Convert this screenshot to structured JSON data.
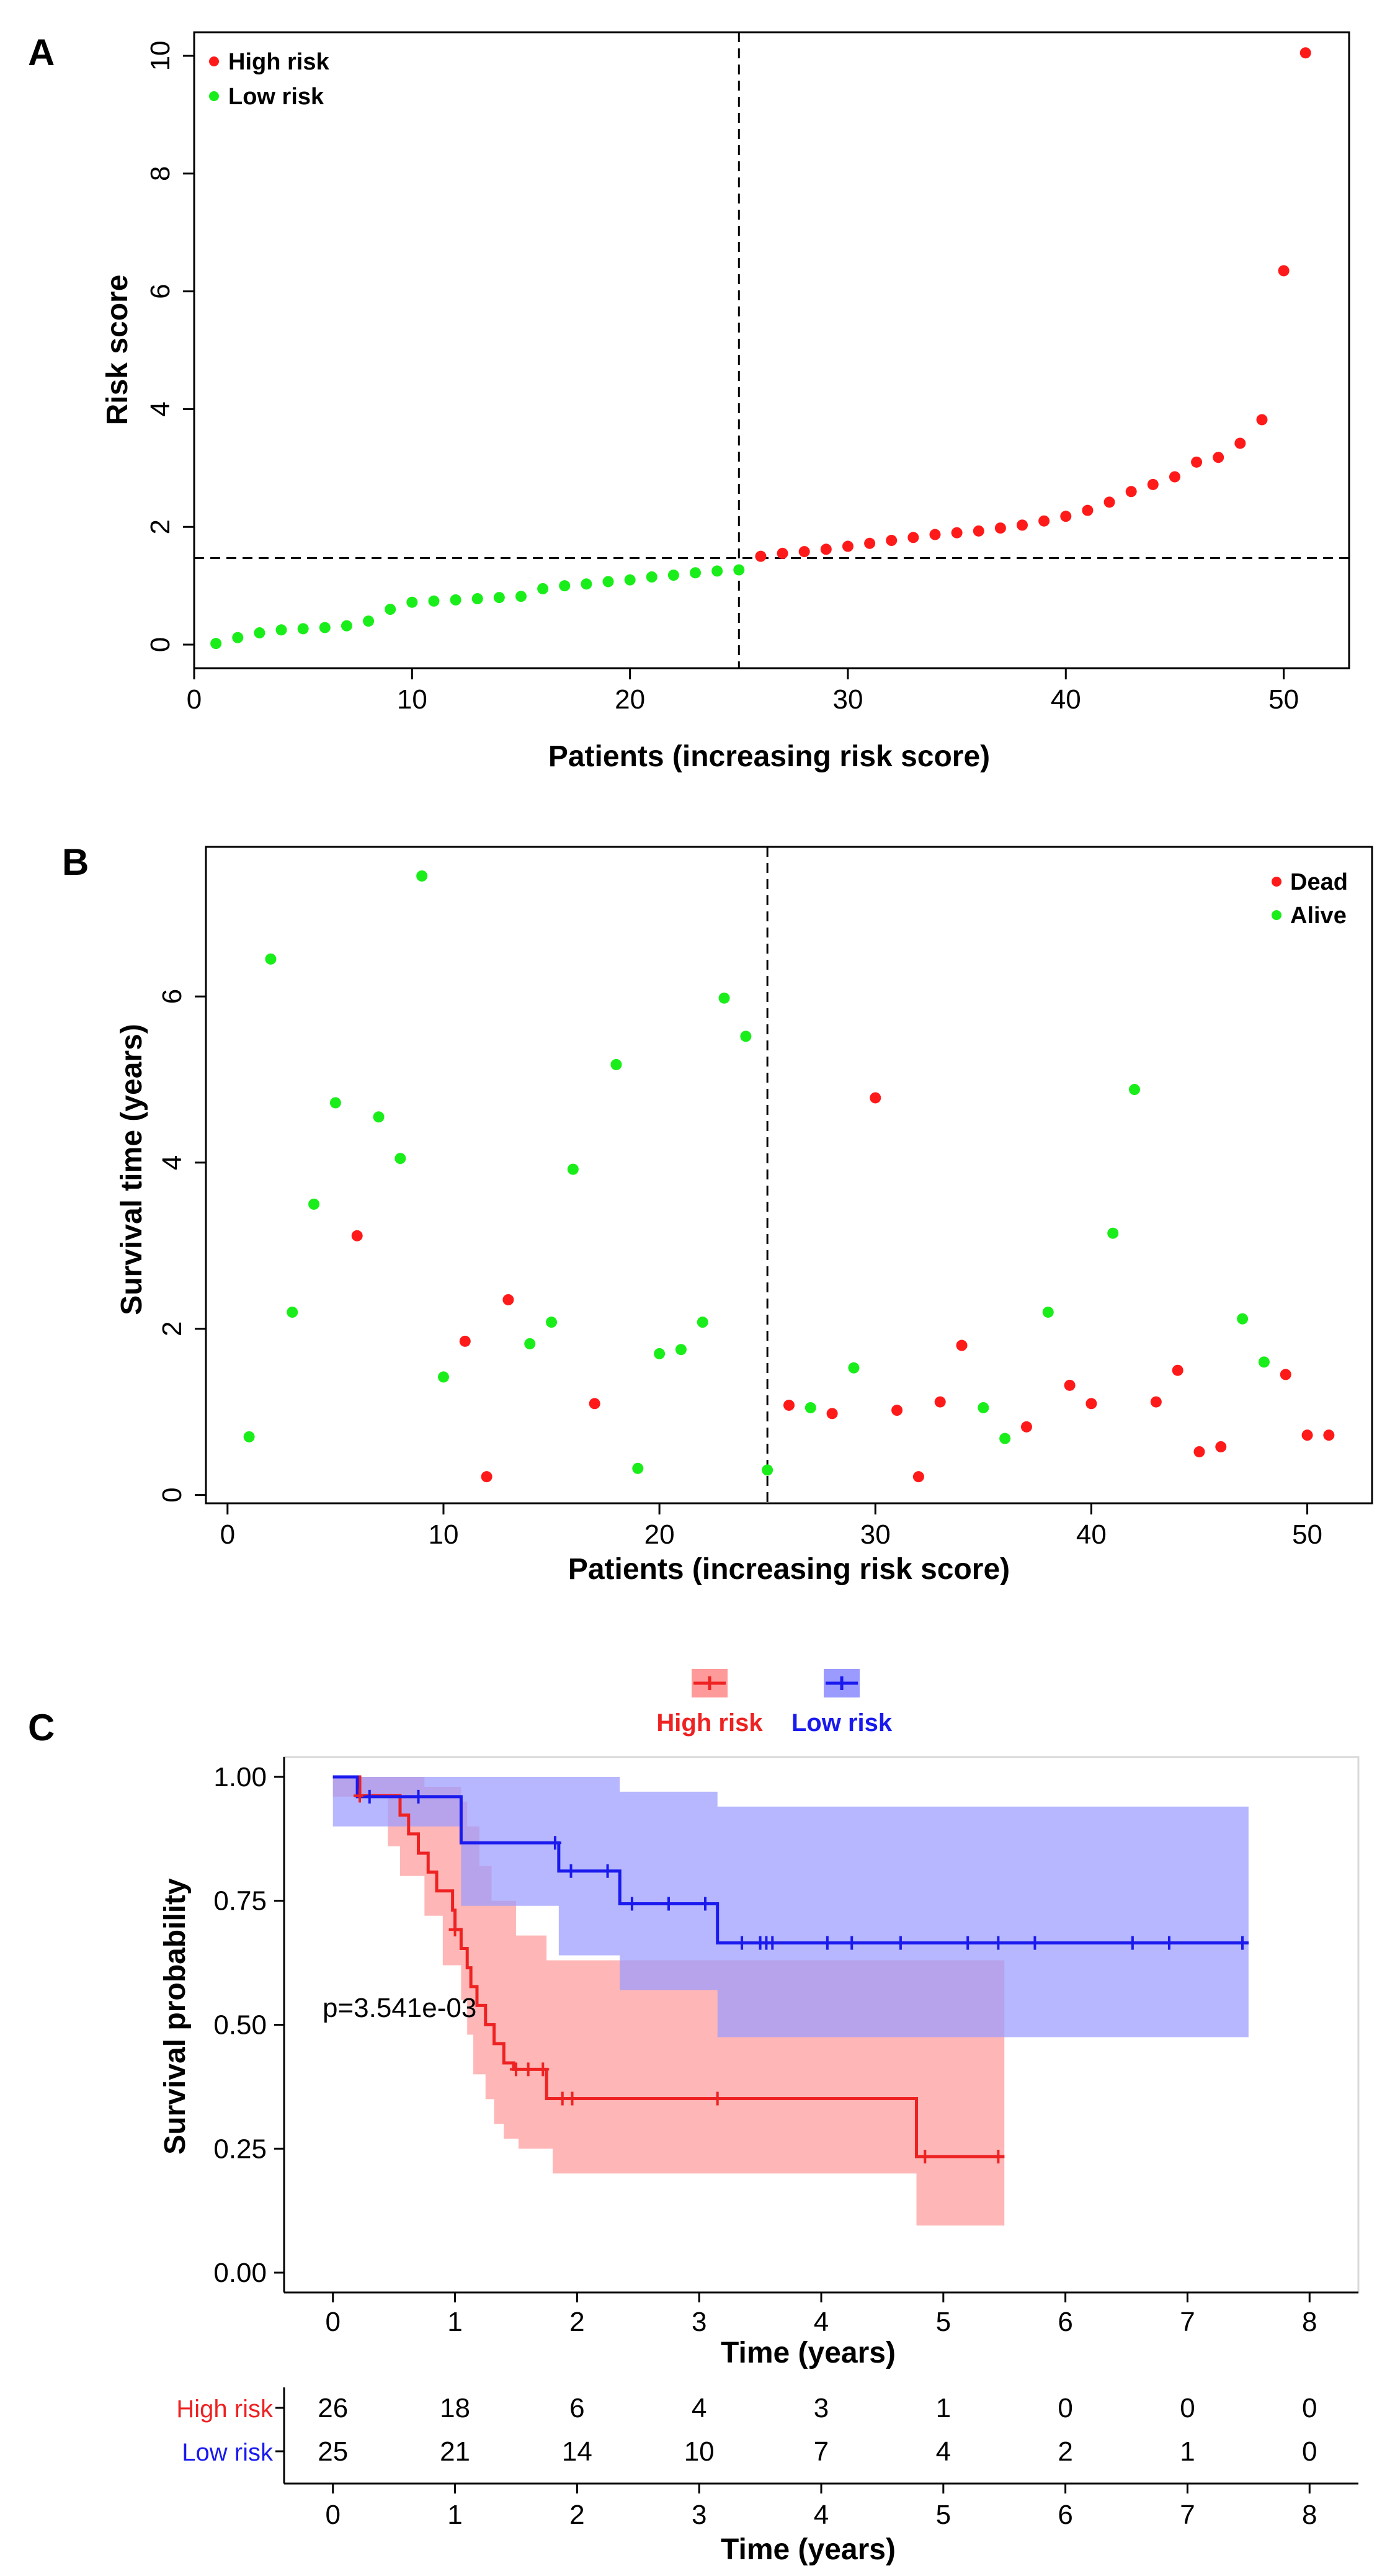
{
  "colors": {
    "high": "#ff1a1a",
    "low": "#1aee1a",
    "km_high": "#ee2222",
    "km_low": "#1a1aee",
    "km_high_band": "#ff9a9a",
    "km_low_band": "#9b9bff",
    "km_overlap": "#bb77cc"
  },
  "chart_data": [
    {
      "type": "scatter",
      "panel_label": "A",
      "xlabel": "Patients (increasing risk score)",
      "ylabel": "Risk score",
      "xlim": [
        0,
        53
      ],
      "ylim": [
        -0.4,
        10.4
      ],
      "xticks": [
        0,
        10,
        20,
        30,
        40,
        50
      ],
      "yticks": [
        0,
        2,
        4,
        6,
        8,
        10
      ],
      "cutoff_x": 25,
      "cutoff_y": 1.47,
      "legend": [
        "High risk",
        "Low risk"
      ],
      "series": [
        {
          "name": "Low risk",
          "x": [
            1,
            2,
            3,
            4,
            5,
            6,
            7,
            8,
            9,
            10,
            11,
            12,
            13,
            14,
            15,
            16,
            17,
            18,
            19,
            20,
            21,
            22,
            23,
            24,
            25
          ],
          "y": [
            0.02,
            0.12,
            0.2,
            0.25,
            0.27,
            0.29,
            0.32,
            0.4,
            0.6,
            0.72,
            0.74,
            0.76,
            0.78,
            0.8,
            0.82,
            0.95,
            1.0,
            1.03,
            1.07,
            1.1,
            1.15,
            1.18,
            1.22,
            1.25,
            1.27
          ]
        },
        {
          "name": "High risk",
          "x": [
            26,
            27,
            28,
            29,
            30,
            31,
            32,
            33,
            34,
            35,
            36,
            37,
            38,
            39,
            40,
            41,
            42,
            43,
            44,
            45,
            46,
            47,
            48,
            49,
            50,
            51
          ],
          "y": [
            1.5,
            1.55,
            1.58,
            1.62,
            1.67,
            1.72,
            1.77,
            1.82,
            1.87,
            1.9,
            1.93,
            1.98,
            2.03,
            2.1,
            2.18,
            2.28,
            2.42,
            2.6,
            2.72,
            2.85,
            3.1,
            3.18,
            3.42,
            3.82,
            6.35,
            10.05
          ]
        }
      ]
    },
    {
      "type": "scatter",
      "panel_label": "B",
      "xlabel": "Patients (increasing risk score)",
      "ylabel": "Survival time (years)",
      "xlim": [
        -1,
        53
      ],
      "ylim": [
        -0.1,
        7.8
      ],
      "xticks": [
        0,
        10,
        20,
        30,
        40,
        50
      ],
      "yticks": [
        0,
        2,
        4,
        6
      ],
      "cutoff_x": 25,
      "legend": [
        "Dead",
        "Alive"
      ],
      "series": [
        {
          "name": "Dead",
          "x": [
            6,
            11,
            12,
            13,
            17,
            26,
            28,
            30,
            31,
            32,
            33,
            34,
            37,
            39,
            40,
            43,
            44,
            45,
            46,
            49,
            50,
            51
          ],
          "y": [
            3.12,
            1.85,
            0.22,
            2.35,
            1.1,
            1.08,
            0.98,
            4.78,
            1.02,
            0.22,
            1.12,
            1.8,
            0.82,
            1.32,
            1.1,
            1.12,
            1.5,
            0.52,
            0.58,
            1.45,
            0.72,
            0.72
          ]
        },
        {
          "name": "Alive",
          "x": [
            1,
            2,
            3,
            4,
            5,
            7,
            8,
            9,
            10,
            14,
            15,
            16,
            18,
            19,
            20,
            21,
            22,
            23,
            24,
            25,
            27,
            29,
            35,
            36,
            38,
            41,
            42,
            47,
            48
          ],
          "y": [
            0.7,
            6.45,
            2.2,
            3.5,
            4.72,
            4.55,
            4.05,
            7.45,
            1.42,
            1.82,
            2.08,
            3.92,
            5.18,
            0.32,
            1.7,
            1.75,
            2.08,
            5.98,
            5.52,
            0.3,
            1.05,
            1.53,
            1.05,
            0.68,
            2.2,
            3.15,
            4.88,
            2.12,
            1.6
          ]
        }
      ]
    },
    {
      "type": "line",
      "subtype": "kaplan-meier",
      "panel_label": "C",
      "xlabel": "Time (years)",
      "ylabel": "Survival probability",
      "xlim": [
        -0.4,
        8.4
      ],
      "ylim": [
        -0.04,
        1.04
      ],
      "xticks": [
        0,
        1,
        2,
        3,
        4,
        5,
        6,
        7,
        8
      ],
      "yticks": [
        0.0,
        0.25,
        0.5,
        0.75,
        1.0
      ],
      "ytick_labels": [
        "0.00",
        "0.25",
        "0.50",
        "0.75",
        "1.00"
      ],
      "pvalue": "p=3.541e-03",
      "legend": [
        "High risk",
        "Low risk"
      ],
      "series": [
        {
          "name": "High risk",
          "steps": [
            [
              0,
              1.0
            ],
            [
              0.22,
              0.962
            ],
            [
              0.55,
              0.923
            ],
            [
              0.62,
              0.885
            ],
            [
              0.7,
              0.846
            ],
            [
              0.78,
              0.808
            ],
            [
              0.85,
              0.77
            ],
            [
              0.98,
              0.731
            ],
            [
              1.0,
              0.692
            ],
            [
              1.05,
              0.654
            ],
            [
              1.1,
              0.615
            ],
            [
              1.13,
              0.577
            ],
            [
              1.18,
              0.539
            ],
            [
              1.25,
              0.5
            ],
            [
              1.32,
              0.462
            ],
            [
              1.4,
              0.423
            ],
            [
              1.48,
              0.41
            ],
            [
              1.75,
              0.351
            ],
            [
              4.78,
              0.234
            ],
            [
              5.5,
              0.234
            ]
          ],
          "censor_x": [
            0.22,
            1.0,
            1.5,
            1.6,
            1.72,
            1.88,
            1.96,
            3.15,
            4.85,
            5.45
          ],
          "ci_upper": [
            [
              0,
              1.0
            ],
            [
              0.3,
              1.0
            ],
            [
              0.75,
              0.98
            ],
            [
              1.05,
              0.95
            ],
            [
              1.1,
              0.9
            ],
            [
              1.2,
              0.82
            ],
            [
              1.3,
              0.75
            ],
            [
              1.5,
              0.68
            ],
            [
              1.75,
              0.63
            ],
            [
              5.5,
              0.63
            ]
          ],
          "ci_lower": [
            [
              0,
              0.96
            ],
            [
              0.45,
              0.86
            ],
            [
              0.55,
              0.8
            ],
            [
              0.75,
              0.72
            ],
            [
              0.9,
              0.62
            ],
            [
              1.05,
              0.55
            ],
            [
              1.1,
              0.48
            ],
            [
              1.15,
              0.4
            ],
            [
              1.25,
              0.35
            ],
            [
              1.32,
              0.3
            ],
            [
              1.4,
              0.27
            ],
            [
              1.52,
              0.25
            ],
            [
              1.8,
              0.2
            ],
            [
              4.78,
              0.095
            ],
            [
              5.5,
              0.095
            ]
          ]
        },
        {
          "name": "Low risk",
          "steps": [
            [
              0,
              1.0
            ],
            [
              0.2,
              0.96
            ],
            [
              0.3,
              0.96
            ],
            [
              1.05,
              0.867
            ],
            [
              1.85,
              0.81
            ],
            [
              2.35,
              0.744
            ],
            [
              3.15,
              0.665
            ],
            [
              7.5,
              0.665
            ]
          ],
          "censor_x": [
            0.3,
            0.7,
            1.82,
            1.95,
            2.25,
            2.45,
            2.75,
            3.05,
            3.35,
            3.5,
            3.55,
            3.6,
            4.05,
            4.25,
            4.65,
            5.2,
            5.45,
            5.75,
            6.55,
            6.85,
            7.45
          ],
          "ci_upper": [
            [
              0,
              1.0
            ],
            [
              2.35,
              1.0
            ],
            [
              2.35,
              0.97
            ],
            [
              3.15,
              0.97
            ],
            [
              3.15,
              0.94
            ],
            [
              7.5,
              0.94
            ]
          ],
          "ci_lower": [
            [
              0,
              0.9
            ],
            [
              1.05,
              0.9
            ],
            [
              1.05,
              0.74
            ],
            [
              1.85,
              0.74
            ],
            [
              1.85,
              0.64
            ],
            [
              2.35,
              0.64
            ],
            [
              2.35,
              0.57
            ],
            [
              3.15,
              0.57
            ],
            [
              3.15,
              0.475
            ],
            [
              7.5,
              0.475
            ]
          ]
        }
      ],
      "risk_table": {
        "xlabel": "Time (years)",
        "rows": [
          {
            "name": "High risk",
            "counts": [
              26,
              18,
              6,
              4,
              3,
              1,
              0,
              0,
              0
            ]
          },
          {
            "name": "Low risk",
            "counts": [
              25,
              21,
              14,
              10,
              7,
              4,
              2,
              1,
              0
            ]
          }
        ]
      }
    }
  ]
}
